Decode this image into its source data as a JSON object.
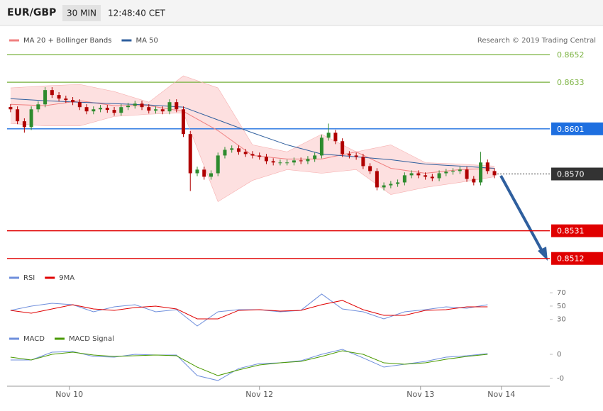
{
  "header": {
    "symbol": "EUR/GBP",
    "timeframe": "30 MIN",
    "time": "12:48:40 CET"
  },
  "credit": "Research © 2019 Trading Central",
  "chart_data": [
    {
      "type": "candlestick",
      "xlim": [
        -0.5,
        78
      ],
      "ylim": [
        0.8507,
        0.867
      ],
      "up_color": "#2e8b2e",
      "down_color": "#b00000",
      "open": [
        0.8616,
        0.86144,
        0.86062,
        0.86022,
        0.86144,
        0.86178,
        0.86276,
        0.86242,
        0.86218,
        0.86208,
        0.86193,
        0.86159,
        0.8613,
        0.86144,
        0.86154,
        0.8614,
        0.8612,
        0.86159,
        0.86169,
        0.86183,
        0.86159,
        0.86135,
        0.86144,
        0.8613,
        0.86193,
        0.86144,
        0.85974,
        0.85705,
        0.8573,
        0.85681,
        0.85705,
        0.85827,
        0.85866,
        0.85876,
        0.85852,
        0.85837,
        0.85827,
        0.85818,
        0.85788,
        0.85779,
        0.85779,
        0.85779,
        0.85793,
        0.85788,
        0.85803,
        0.85827,
        0.85949,
        0.85983,
        0.85925,
        0.85837,
        0.85827,
        0.85818,
        0.85754,
        0.8572,
        0.85608,
        0.85622,
        0.85632,
        0.85642,
        0.85691,
        0.85705,
        0.85691,
        0.85681,
        0.85671,
        0.85705,
        0.85715,
        0.8572,
        0.8573,
        0.85666,
        0.85642,
        0.85779,
        0.8572
      ],
      "high": [
        0.8618,
        0.86164,
        0.86082,
        0.86164,
        0.86198,
        0.86296,
        0.86296,
        0.86262,
        0.86238,
        0.86228,
        0.86213,
        0.86179,
        0.86164,
        0.86174,
        0.86174,
        0.8616,
        0.86179,
        0.86189,
        0.86203,
        0.86203,
        0.86179,
        0.86164,
        0.86164,
        0.86213,
        0.86213,
        0.86164,
        0.85994,
        0.8575,
        0.8575,
        0.85725,
        0.85847,
        0.85886,
        0.85896,
        0.85896,
        0.85872,
        0.85857,
        0.85847,
        0.85838,
        0.85808,
        0.85799,
        0.85799,
        0.85813,
        0.85813,
        0.85823,
        0.85847,
        0.85969,
        0.86046,
        0.86003,
        0.85945,
        0.85857,
        0.85847,
        0.85838,
        0.85774,
        0.8574,
        0.85642,
        0.85652,
        0.85662,
        0.85711,
        0.85725,
        0.85725,
        0.85711,
        0.85701,
        0.85725,
        0.85735,
        0.8574,
        0.8575,
        0.8575,
        0.85686,
        0.85852,
        0.85799,
        0.8574
      ],
      "low": [
        0.86124,
        0.86042,
        0.85984,
        0.86002,
        0.86124,
        0.86158,
        0.86222,
        0.86198,
        0.86188,
        0.86173,
        0.86139,
        0.8611,
        0.8611,
        0.86124,
        0.8612,
        0.861,
        0.861,
        0.86139,
        0.86149,
        0.86139,
        0.86115,
        0.86115,
        0.8611,
        0.8611,
        0.86124,
        0.85954,
        0.85583,
        0.85685,
        0.85661,
        0.85661,
        0.85685,
        0.85807,
        0.85846,
        0.85832,
        0.85817,
        0.85807,
        0.85798,
        0.85768,
        0.85759,
        0.85759,
        0.85759,
        0.85759,
        0.85768,
        0.85768,
        0.85783,
        0.85807,
        0.85929,
        0.85905,
        0.85817,
        0.85807,
        0.85798,
        0.85734,
        0.857,
        0.85588,
        0.85588,
        0.85602,
        0.85612,
        0.85622,
        0.85671,
        0.85671,
        0.85661,
        0.85651,
        0.85651,
        0.85685,
        0.85695,
        0.857,
        0.85646,
        0.85622,
        0.85622,
        0.857,
        0.85671
      ],
      "close": [
        0.86144,
        0.86062,
        0.86022,
        0.86144,
        0.86178,
        0.86276,
        0.86242,
        0.86218,
        0.86208,
        0.86193,
        0.86159,
        0.8613,
        0.86144,
        0.86154,
        0.8614,
        0.8612,
        0.86159,
        0.86169,
        0.86183,
        0.86159,
        0.86135,
        0.86144,
        0.8613,
        0.86193,
        0.86144,
        0.85974,
        0.85705,
        0.8573,
        0.85681,
        0.85705,
        0.85827,
        0.85866,
        0.85876,
        0.85852,
        0.85837,
        0.85827,
        0.85818,
        0.85788,
        0.85779,
        0.85779,
        0.85779,
        0.85793,
        0.85788,
        0.85803,
        0.85827,
        0.85949,
        0.85983,
        0.85925,
        0.85837,
        0.85827,
        0.85818,
        0.85754,
        0.8572,
        0.85608,
        0.85622,
        0.85632,
        0.85642,
        0.85691,
        0.85705,
        0.85691,
        0.85681,
        0.85671,
        0.85705,
        0.85715,
        0.8572,
        0.8573,
        0.85666,
        0.85642,
        0.85779,
        0.8572,
        0.85691
      ],
      "series": [
        {
          "name": "MA 20 + Bollinger Bands",
          "color": "#f08080",
          "band_color": "#fde0e0",
          "x": [
            0,
            5,
            10,
            15,
            20,
            25,
            30,
            35,
            40,
            45,
            50,
            55,
            60,
            65,
            70
          ],
          "values": [
            0.86178,
            0.86169,
            0.86203,
            0.86169,
            0.86169,
            0.8613,
            0.85998,
            0.85827,
            0.85803,
            0.85803,
            0.85852,
            0.85739,
            0.85705,
            0.8573,
            0.85739
          ],
          "upper": [
            0.86291,
            0.86305,
            0.86315,
            0.86266,
            0.86193,
            0.86374,
            0.86291,
            0.859,
            0.85852,
            0.85973,
            0.85852,
            0.859,
            0.85778,
            0.85768,
            0.85754
          ],
          "lower": [
            0.86047,
            0.8603,
            0.8603,
            0.86095,
            0.8611,
            0.8612,
            0.8551,
            0.85656,
            0.8573,
            0.85705,
            0.8573,
            0.85559,
            0.85608,
            0.85642,
            0.85681
          ]
        },
        {
          "name": "MA 50",
          "color": "#2f5f9e",
          "x": [
            0,
            5,
            10,
            15,
            20,
            25,
            30,
            35,
            40,
            45,
            50,
            55,
            60,
            65,
            70
          ],
          "values": [
            0.86217,
            0.86203,
            0.86193,
            0.86183,
            0.86174,
            0.86159,
            0.86071,
            0.85983,
            0.859,
            0.85837,
            0.85818,
            0.85798,
            0.85768,
            0.85754,
            0.85739
          ]
        }
      ],
      "levels": [
        {
          "value": 0.8652,
          "color": "#7cb342",
          "boxed": false
        },
        {
          "value": 0.8633,
          "color": "#7cb342",
          "boxed": false
        },
        {
          "value": 0.8601,
          "color": "#1e6fe0",
          "boxed": true
        },
        {
          "value": 0.857,
          "label": "0.8570",
          "color": "#333333",
          "boxed": true,
          "dotted": true
        },
        {
          "value": 0.8531,
          "color": "#e00000",
          "boxed": true
        },
        {
          "value": 0.8512,
          "color": "#e00000",
          "boxed": true
        }
      ]
    },
    {
      "type": "line",
      "xlim": [
        -0.5,
        78
      ],
      "ylim": [
        18,
        84
      ],
      "yticks": [
        30,
        50,
        70
      ],
      "series": [
        {
          "name": "RSI",
          "color": "#6f8fdc",
          "x": [
            0,
            3,
            6,
            9,
            12,
            15,
            18,
            21,
            24,
            27,
            30,
            33,
            36,
            39,
            42,
            45,
            48,
            51,
            54,
            57,
            60,
            63,
            66,
            69
          ],
          "values": [
            43.6,
            49.9,
            54.2,
            52.1,
            41.4,
            48.9,
            52.1,
            41.4,
            44.6,
            20.1,
            41.4,
            44.6,
            44.6,
            41.4,
            43.6,
            68.1,
            45.7,
            41.4,
            30.8,
            41.4,
            44.6,
            48.9,
            46.8,
            52.1
          ]
        },
        {
          "name": "9MA",
          "color": "#e00000",
          "x": [
            0,
            3,
            6,
            9,
            12,
            15,
            18,
            21,
            24,
            27,
            30,
            33,
            36,
            39,
            42,
            45,
            48,
            51,
            54,
            57,
            60,
            63,
            66,
            69
          ],
          "values": [
            43.6,
            39.3,
            45.7,
            52.1,
            45.7,
            43.6,
            47.8,
            49.9,
            45.7,
            30.8,
            30.8,
            43.6,
            44.6,
            42.5,
            43.6,
            52.1,
            58.5,
            44.6,
            36.1,
            36.1,
            43.6,
            44.6,
            48.9,
            48.9
          ]
        }
      ]
    },
    {
      "type": "line",
      "xlim": [
        -0.5,
        78
      ],
      "ylim": [
        -0.00141,
        0.00053
      ],
      "yticks": [
        0,
        {
          "value": -0.001,
          "label": "-0"
        }
      ],
      "xticks": [
        {
          "value": 8.5,
          "label": "Nov 10"
        },
        {
          "value": 36,
          "label": "Nov 12"
        },
        {
          "value": 59.3,
          "label": "Nov 13"
        },
        {
          "value": 71,
          "label": "Nov 14"
        }
      ],
      "series": [
        {
          "name": "MACD",
          "color": "#6f8fdc",
          "x": [
            0,
            3,
            6,
            9,
            12,
            15,
            18,
            21,
            24,
            27,
            30,
            33,
            36,
            39,
            42,
            45,
            48,
            51,
            54,
            57,
            60,
            63,
            66,
            69
          ],
          "values": [
            -0.000235,
            -0.000235,
            8.8e-05,
            0.000118,
            -8.8e-05,
            -0.000118,
            0,
            -2.9e-05,
            -2.9e-05,
            -0.000882,
            -0.001088,
            -0.000588,
            -0.000382,
            -0.000353,
            -0.000265,
            0,
            0.000206,
            -0.000147,
            -0.000529,
            -0.000412,
            -0.000294,
            -0.000118,
            -5.9e-05,
            2.9e-05
          ]
        },
        {
          "name": "MACD Signal",
          "color": "#4a9a00",
          "x": [
            0,
            3,
            6,
            9,
            12,
            15,
            18,
            21,
            24,
            27,
            30,
            33,
            36,
            39,
            42,
            45,
            48,
            51,
            54,
            57,
            60,
            63,
            66,
            69
          ],
          "values": [
            -0.000118,
            -0.000235,
            0,
            8.8e-05,
            -2.9e-05,
            -8.8e-05,
            -5.9e-05,
            -2.9e-05,
            -5.9e-05,
            -0.000529,
            -0.000882,
            -0.000647,
            -0.000441,
            -0.000353,
            -0.000294,
            -8.8e-05,
            0.000147,
            0,
            -0.000353,
            -0.000412,
            -0.000353,
            -0.000206,
            -8.8e-05,
            0
          ]
        }
      ]
    }
  ]
}
